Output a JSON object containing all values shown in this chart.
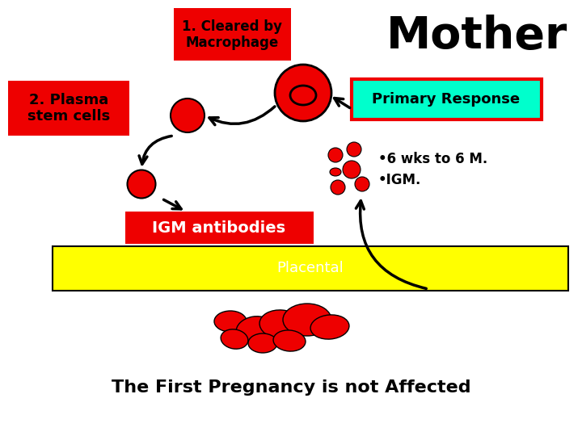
{
  "bg_color": "#ffffff",
  "title_mother": "Mother",
  "label_cleared": "1. Cleared by\nMacrophage",
  "label_plasma": "2. Plasma\nstem cells",
  "label_igm": "IGM antibodies",
  "label_placental": "Placental",
  "label_primary": "Primary Response",
  "label_6wks": "•6 wks to 6 M.",
  "label_igm2": "•IGM.",
  "label_bottom": "The First Pregnancy is not Affected",
  "red": "#ee0000",
  "yellow": "#ffff00",
  "cyan_box": "#00ffcc",
  "black": "#000000",
  "white": "#ffffff"
}
